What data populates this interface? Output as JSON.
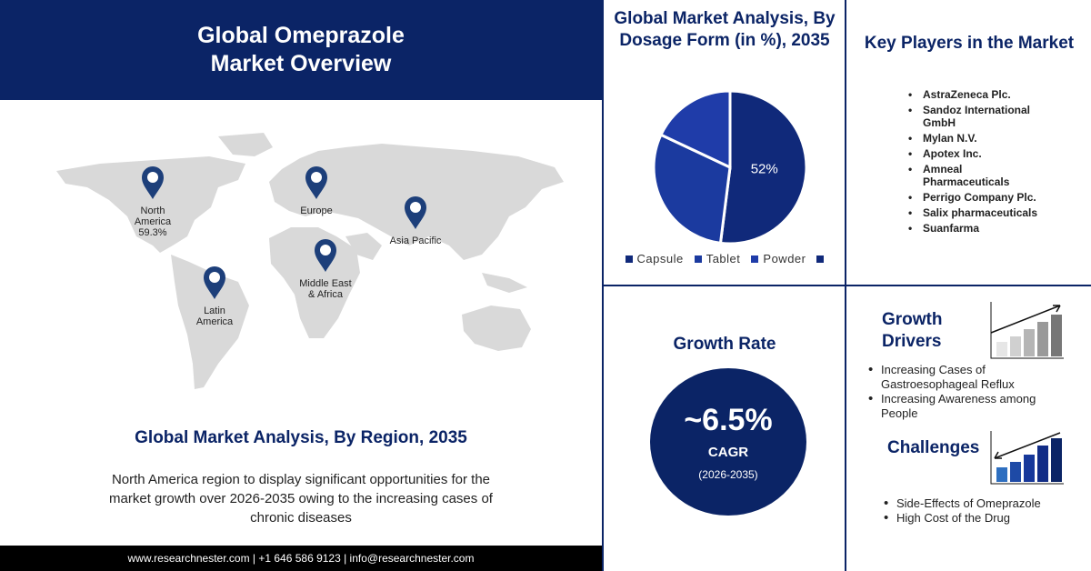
{
  "header": {
    "title": "Global Omeprazole Market Overview"
  },
  "map": {
    "pins": [
      {
        "lines": [
          "North",
          "America",
          "59.3%"
        ]
      },
      {
        "lines": [
          "Europe"
        ]
      },
      {
        "lines": [
          "Asia Pacific"
        ]
      },
      {
        "lines": [
          "Middle East",
          "& Africa"
        ]
      },
      {
        "lines": [
          "Latin",
          "America"
        ]
      }
    ],
    "title": "Global Market Analysis, By Region, 2035",
    "text": "North America region to display significant opportunities for the market growth over 2026-2035 owing to the increasing cases of chronic diseases"
  },
  "footer": {
    "text": "www.researchnester.com | +1 646 586 9123 | info@researchnester.com"
  },
  "chart_data": {
    "type": "pie",
    "title": "Global Market Analysis, By Dosage Form (in %), 2035",
    "series": [
      {
        "name": "Capsule",
        "color": "#10297a",
        "values": [
          52
        ],
        "value_labels": [
          "52%"
        ]
      },
      {
        "name": "Tablet",
        "color": "#1b3a9f",
        "values": [
          30
        ]
      },
      {
        "name": "Powder",
        "color": "#1f3ca9",
        "values": [
          18
        ]
      }
    ]
  },
  "key_players": {
    "title": "Key Players in the Market",
    "items": [
      "AstraZeneca Plc.",
      "Sandoz International GmbH",
      "Mylan N.V.",
      "Apotex  Inc.",
      "Amneal Pharmaceuticals",
      "Perrigo Company Plc.",
      "Salix pharmaceuticals",
      "Suanfarma"
    ]
  },
  "growth_rate": {
    "title": "Growth Rate",
    "value": "~6.5%",
    "unit": "CAGR",
    "period": "(2026-2035)"
  },
  "growth_drivers": {
    "title": "Growth Drivers",
    "items": [
      "Increasing Cases of Gastroesophageal Reflux",
      "Increasing Awareness among People"
    ]
  },
  "challenges": {
    "title": "Challenges",
    "items": [
      "Side-Effects of Omeprazole",
      "High Cost of the Drug"
    ]
  }
}
